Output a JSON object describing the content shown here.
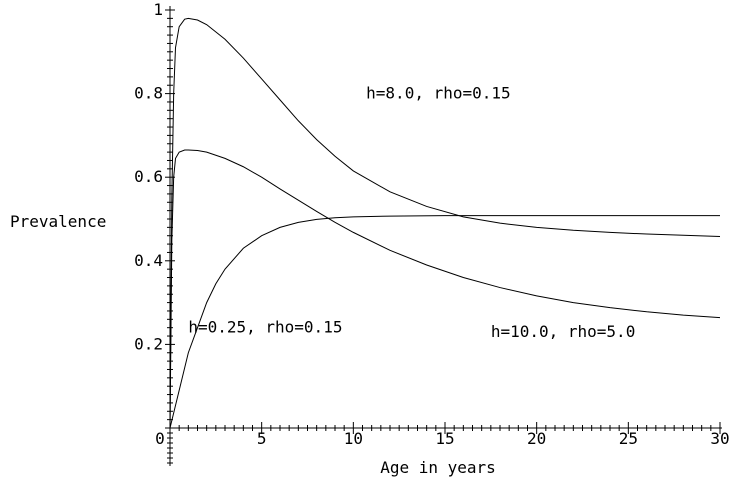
{
  "chart_data": {
    "type": "line",
    "xlabel": "Age in years",
    "ylabel": "Prevalence",
    "xlim": [
      0,
      30
    ],
    "ylim": [
      0,
      1
    ],
    "x_ticks": [
      {
        "value": 0,
        "label": "0"
      },
      {
        "value": 5,
        "label": "5"
      },
      {
        "value": 10,
        "label": "10"
      },
      {
        "value": 15,
        "label": "15"
      },
      {
        "value": 20,
        "label": "20"
      },
      {
        "value": 25,
        "label": "25"
      },
      {
        "value": 30,
        "label": "30"
      }
    ],
    "y_ticks": [
      {
        "value": 0.2,
        "label": "0.2"
      },
      {
        "value": 0.4,
        "label": "0.4"
      },
      {
        "value": 0.6,
        "label": "0.6"
      },
      {
        "value": 0.8,
        "label": "0.8"
      },
      {
        "value": 1,
        "label": "1"
      }
    ],
    "grid": false,
    "series": [
      {
        "name": "h=8.0, rho=0.15",
        "x": [
          0,
          0.1,
          0.2,
          0.3,
          0.5,
          0.8,
          1,
          1.5,
          2,
          3,
          4,
          5,
          6,
          7,
          8,
          9,
          10,
          12,
          14,
          16,
          18,
          20,
          22,
          24,
          26,
          28,
          30
        ],
        "y": [
          0,
          0.55,
          0.8,
          0.91,
          0.96,
          0.978,
          0.98,
          0.976,
          0.965,
          0.93,
          0.885,
          0.835,
          0.785,
          0.735,
          0.69,
          0.65,
          0.615,
          0.565,
          0.53,
          0.505,
          0.49,
          0.48,
          0.473,
          0.468,
          0.464,
          0.461,
          0.458
        ]
      },
      {
        "name": "h=10.0, rho=5.0",
        "x": [
          0,
          0.1,
          0.2,
          0.3,
          0.5,
          0.8,
          1,
          1.5,
          2,
          3,
          4,
          5,
          6,
          7,
          8,
          9,
          10,
          12,
          14,
          16,
          18,
          20,
          22,
          24,
          26,
          28,
          30
        ],
        "y": [
          0,
          0.45,
          0.6,
          0.645,
          0.66,
          0.665,
          0.665,
          0.664,
          0.66,
          0.645,
          0.625,
          0.6,
          0.572,
          0.545,
          0.518,
          0.492,
          0.468,
          0.425,
          0.39,
          0.36,
          0.336,
          0.316,
          0.3,
          0.288,
          0.278,
          0.27,
          0.264
        ]
      },
      {
        "name": "h=0.25, rho=0.15",
        "x": [
          0,
          0.5,
          1,
          1.5,
          2,
          2.5,
          3,
          4,
          5,
          6,
          7,
          8,
          9,
          10,
          12,
          15,
          20,
          25,
          30
        ],
        "y": [
          0,
          0.09,
          0.18,
          0.24,
          0.3,
          0.345,
          0.38,
          0.43,
          0.46,
          0.48,
          0.492,
          0.499,
          0.503,
          0.505,
          0.507,
          0.508,
          0.508,
          0.508,
          0.508
        ]
      }
    ],
    "annotations": [
      {
        "text": "h=8.0, rho=0.15",
        "x": 10.7,
        "y": 0.8
      },
      {
        "text": "h=10.0, rho=5.0",
        "x": 17.5,
        "y": 0.23
      },
      {
        "text": "h=0.25, rho=0.15",
        "x": 1.0,
        "y": 0.24
      }
    ]
  }
}
